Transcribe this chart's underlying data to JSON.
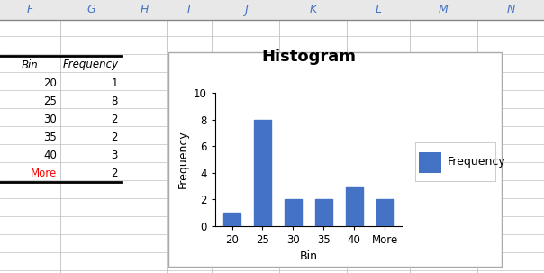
{
  "title": "Histogram",
  "bins": [
    "20",
    "25",
    "30",
    "35",
    "40",
    "More"
  ],
  "frequencies": [
    1,
    8,
    2,
    2,
    3,
    2
  ],
  "bar_color": "#4472C4",
  "xlabel": "Bin",
  "ylabel": "Frequency",
  "ylim": [
    0,
    10
  ],
  "yticks": [
    0,
    2,
    4,
    6,
    8,
    10
  ],
  "legend_label": "Frequency",
  "title_fontsize": 13,
  "axis_label_fontsize": 9,
  "tick_fontsize": 8.5,
  "legend_fontsize": 9,
  "chart_bg": "#FFFFFF",
  "spreadsheet_bg": "#FFFFFF",
  "header_bg": "#E8E8E8",
  "header_text_color": "#4472C4",
  "grid_color": "#C0C0C0",
  "col_headers": [
    "F",
    "G",
    "H",
    "I",
    "J",
    "K",
    "L",
    "M",
    "N"
  ],
  "table_header_row": [
    "Bin",
    "Frequency"
  ],
  "table_data": [
    [
      "20",
      "1"
    ],
    [
      "25",
      "8"
    ],
    [
      "30",
      "2"
    ],
    [
      "35",
      "2"
    ],
    [
      "40",
      "3"
    ],
    [
      "More",
      "2"
    ]
  ],
  "bar_width": 0.55,
  "fig_width": 6.04,
  "fig_height": 3.03,
  "dpi": 100
}
